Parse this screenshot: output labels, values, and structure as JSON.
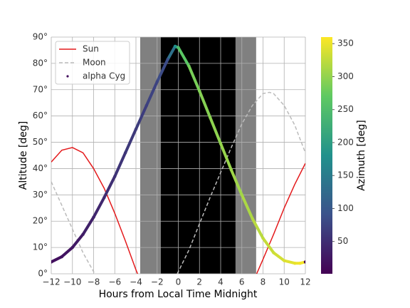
{
  "chart_data": {
    "type": "line",
    "xlabel": "Hours from Local Time Midnight",
    "ylabel": "Altitude [deg]",
    "xlim": [
      -12,
      12
    ],
    "ylim": [
      0,
      90
    ],
    "xticks": [
      {
        "value": -12,
        "label": "−12"
      },
      {
        "value": -10,
        "label": "−10"
      },
      {
        "value": -8,
        "label": "−8"
      },
      {
        "value": -6,
        "label": "−6"
      },
      {
        "value": -4,
        "label": "−4"
      },
      {
        "value": -2,
        "label": "−2"
      },
      0,
      2,
      4,
      6,
      8,
      10,
      12
    ],
    "yticks": [
      {
        "value": 0,
        "label": "0°"
      },
      {
        "value": 10,
        "label": "10°"
      },
      {
        "value": 20,
        "label": "20°"
      },
      {
        "value": 30,
        "label": "30°"
      },
      {
        "value": 40,
        "label": "40°"
      },
      {
        "value": 50,
        "label": "50°"
      },
      {
        "value": 60,
        "label": "60°"
      },
      {
        "value": 70,
        "label": "70°"
      },
      {
        "value": 80,
        "label": "80°"
      },
      {
        "value": 90,
        "label": "90°"
      }
    ],
    "grid": true,
    "legend": "upper left",
    "shading": [
      {
        "x": [
          -3.6,
          7.35
        ],
        "color": "#808080"
      },
      {
        "x": [
          -1.65,
          5.4
        ],
        "color": "#000000"
      }
    ],
    "series": [
      {
        "name": "Sun",
        "color": "#e41a1c",
        "style": "solid",
        "x": [
          -12,
          -11,
          -10,
          -9,
          -8,
          -7,
          -6,
          -5,
          -4,
          -3.85,
          null,
          7.4,
          8,
          9,
          10,
          11,
          12
        ],
        "values": [
          42.5,
          47,
          48,
          46,
          40,
          32.5,
          23,
          12.5,
          1.5,
          0,
          null,
          0,
          5.5,
          15,
          25,
          34,
          42
        ]
      },
      {
        "name": "Moon",
        "color": "#bbbbbb",
        "style": "dashed",
        "x": [
          -12,
          -11,
          -10,
          -9,
          -8,
          -7.9,
          null,
          -0.1,
          1,
          2,
          3,
          4,
          5,
          6,
          7,
          8,
          8.6,
          9,
          10,
          11,
          12
        ],
        "values": [
          35,
          26,
          17,
          8,
          0.8,
          0,
          null,
          0,
          9,
          19,
          29,
          38.5,
          48,
          57,
          64,
          68.5,
          69,
          68.5,
          64,
          56.5,
          46
        ]
      },
      {
        "name": "alpha Cyg",
        "style": "scatter",
        "colorby": "azimuth",
        "x": [
          -12,
          -11,
          -10,
          -9,
          -8,
          -7,
          -6,
          -5,
          -4,
          -3,
          -2,
          -1,
          -0.3,
          0,
          1,
          2,
          3,
          4,
          5,
          6,
          7,
          8,
          9,
          10,
          11,
          11.5,
          12
        ],
        "values": [
          4.5,
          6.5,
          10,
          15,
          21.5,
          29,
          37,
          46,
          55,
          64,
          73,
          81.5,
          86.5,
          86,
          79,
          69.5,
          59.5,
          49.5,
          39.5,
          30,
          21,
          13.5,
          8,
          5,
          4,
          4,
          4.5
        ],
        "azimuth": [
          15,
          20,
          25,
          32,
          40,
          47,
          55,
          60,
          65,
          70,
          75,
          90,
          180,
          250,
          280,
          290,
          295,
          300,
          305,
          310,
          318,
          325,
          332,
          340,
          348,
          355,
          5
        ]
      }
    ],
    "colorbar": {
      "label": "Azimuth [deg]",
      "lim": [
        1,
        360
      ],
      "ticks": [
        50,
        100,
        150,
        200,
        250,
        300,
        350
      ]
    }
  }
}
